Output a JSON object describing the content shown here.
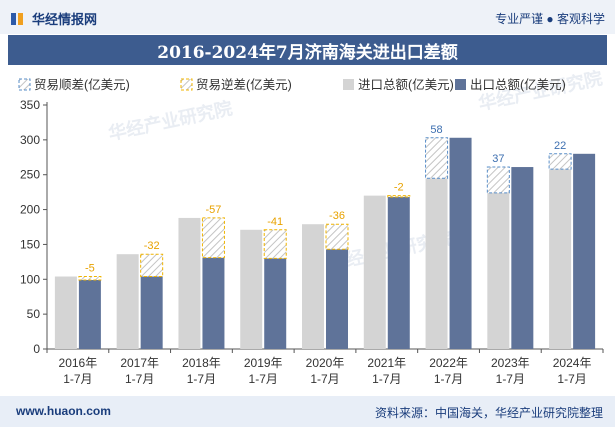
{
  "header": {
    "brand_name": "华经情报网",
    "slogan": "专业严谨 ● 客观科学"
  },
  "footer": {
    "url": "www.huaon.com",
    "source": "资料来源：中国海关，华经产业研究院整理"
  },
  "watermark": "华经产业研究院",
  "chart_data": {
    "type": "bar",
    "title": "2016-2024年7月济南海关进出口差额",
    "categories": [
      "2016年\n1-7月",
      "2017年\n1-7月",
      "2018年\n1-7月",
      "2019年\n1-7月",
      "2020年\n1-7月",
      "2021年\n1-7月",
      "2022年\n1-7月",
      "2023年\n1-7月",
      "2024年\n1-7月"
    ],
    "series": [
      {
        "name": "进口总额(亿美元)",
        "color": "#d4d4d4",
        "values": [
          104,
          136,
          188,
          171,
          179,
          220,
          245,
          224,
          258
        ]
      },
      {
        "name": "出口总额(亿美元)",
        "color": "#5f7399",
        "values": [
          99,
          104,
          131,
          130,
          143,
          218,
          303,
          261,
          280
        ]
      }
    ],
    "balance": [
      -5,
      -32,
      -57,
      -41,
      -36,
      -2,
      58,
      37,
      22
    ],
    "balance_labels": [
      "-5",
      "-32",
      "-57",
      "-41",
      "-36",
      "-2",
      "58",
      "37",
      "22"
    ],
    "legend": [
      {
        "name": "贸易顺差(亿美元)",
        "color": "#5a8fc9"
      },
      {
        "name": "贸易逆差(亿美元)",
        "color": "#f0b400"
      },
      {
        "name": "进口总额(亿美元)",
        "color": "#d4d4d4"
      },
      {
        "name": "出口总额(亿美元)",
        "color": "#5f7399"
      }
    ],
    "surplus_color": "#5a8fc9",
    "deficit_color": "#f0b400",
    "ylim": [
      0,
      350
    ],
    "yticks": [
      0,
      50,
      100,
      150,
      200,
      250,
      300,
      350
    ],
    "xlabel": "",
    "ylabel": ""
  }
}
